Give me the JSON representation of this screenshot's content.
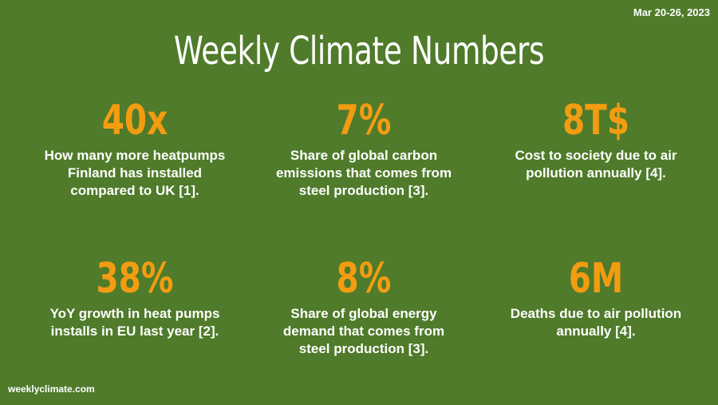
{
  "header": {
    "date_range": "Mar 20-26, 2023",
    "title": "Weekly Climate Numbers"
  },
  "colors": {
    "background": "#4f7b2a",
    "accent": "#f39c12",
    "text": "#ffffff"
  },
  "stats": [
    {
      "value": "40x",
      "description": "How many more heatpumps Finland has installed compared to UK [1]."
    },
    {
      "value": "7%",
      "description": "Share of global carbon emissions that comes from steel production [3]."
    },
    {
      "value": "8T$",
      "description": "Cost to society due to air pollution annually [4]."
    },
    {
      "value": "38%",
      "description": "YoY growth in heat pumps installs in EU last year [2]."
    },
    {
      "value": "8%",
      "description": "Share of global energy demand that comes from steel production [3]."
    },
    {
      "value": "6M",
      "description": "Deaths due to air pollution annually [4]."
    }
  ],
  "footer": {
    "site": "weeklyclimate.com"
  }
}
